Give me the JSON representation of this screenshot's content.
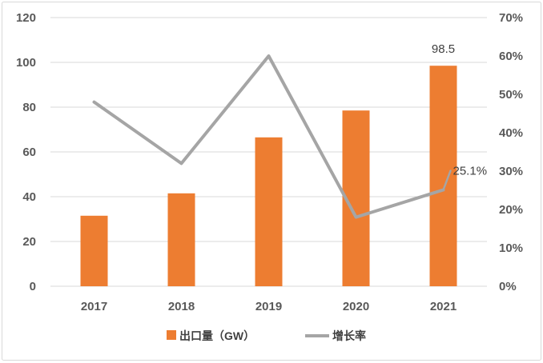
{
  "chart_data": {
    "type": "bar",
    "categories": [
      "2017",
      "2018",
      "2019",
      "2020",
      "2021"
    ],
    "series": [
      {
        "name": "出口量（GW）",
        "type": "bar",
        "secondary_y": false,
        "values": [
          31.5,
          41.5,
          66.5,
          78.5,
          98.5
        ],
        "color": "#ED7D31"
      },
      {
        "name": "增长率",
        "type": "line",
        "secondary_y": true,
        "values": [
          48,
          32,
          60,
          18,
          25.1
        ],
        "color": "#A5A5A5"
      }
    ],
    "ylim_left": [
      0,
      120
    ],
    "yticks_left": [
      "0",
      "20",
      "40",
      "60",
      "80",
      "100",
      "120"
    ],
    "ylim_right": [
      0,
      70
    ],
    "yticks_right": [
      "0%",
      "10%",
      "20%",
      "30%",
      "40%",
      "50%",
      "60%",
      "70%"
    ],
    "data_labels": [
      {
        "series": 0,
        "index": 4,
        "text": "98.5"
      },
      {
        "series": 1,
        "index": 4,
        "text": "25.1%"
      }
    ],
    "grid": true,
    "legend_position": "bottom"
  }
}
